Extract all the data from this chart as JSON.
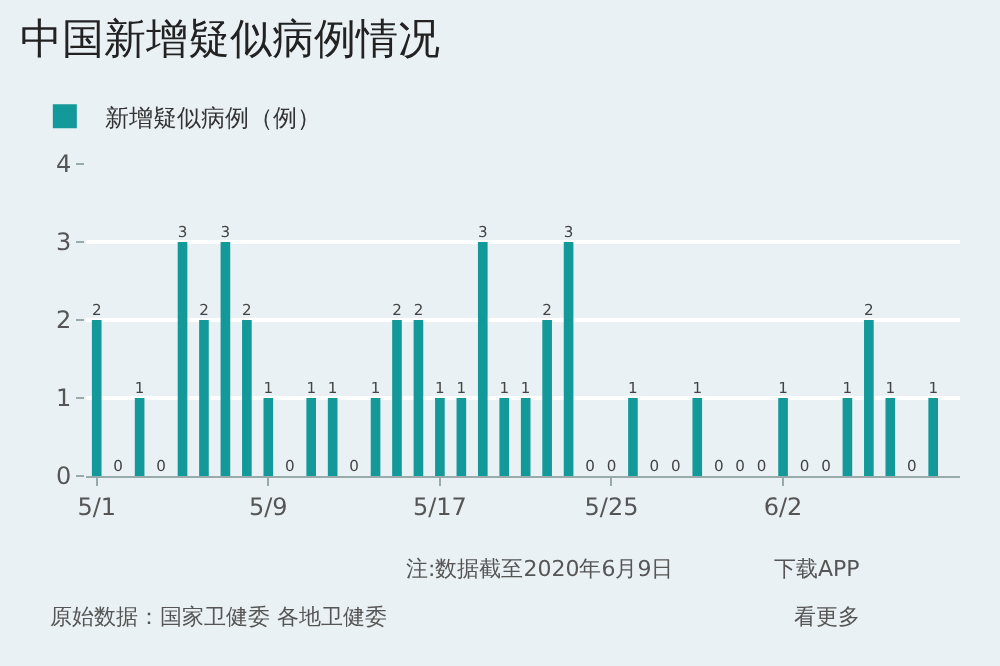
{
  "chart_data": {
    "type": "bar",
    "title": "中国新增疑似病例情况",
    "x": [
      "2020-05-01",
      "2020-05-02",
      "2020-05-03",
      "2020-05-04",
      "2020-05-05",
      "2020-05-06",
      "2020-05-07",
      "2020-05-08",
      "2020-05-09",
      "2020-05-10",
      "2020-05-11",
      "2020-05-12",
      "2020-05-13",
      "2020-05-14",
      "2020-05-15",
      "2020-05-16",
      "2020-05-17",
      "2020-05-18",
      "2020-05-19",
      "2020-05-20",
      "2020-05-21",
      "2020-05-22",
      "2020-05-23",
      "2020-05-24",
      "2020-05-25",
      "2020-05-26",
      "2020-05-27",
      "2020-05-28",
      "2020-05-29",
      "2020-05-30",
      "2020-05-31",
      "2020-06-01",
      "2020-06-02",
      "2020-06-03",
      "2020-06-04",
      "2020-06-05",
      "2020-06-06",
      "2020-06-07",
      "2020-06-08",
      "2020-06-09"
    ],
    "series": [
      {
        "name": "新增疑似病例（例）",
        "color": "#14999a",
        "values": [
          2,
          0,
          1,
          0,
          3,
          2,
          3,
          2,
          1,
          0,
          1,
          1,
          0,
          1,
          2,
          2,
          1,
          1,
          3,
          1,
          1,
          2,
          3,
          0,
          0,
          1,
          0,
          0,
          1,
          0,
          0,
          0,
          1,
          0,
          0,
          1,
          2,
          1,
          0,
          1
        ]
      }
    ],
    "xlim": [
      "2020-04-30T12:00",
      "2020-06-10T06:00"
    ],
    "xticks": [
      {
        "value": "2020-05-01",
        "label": "5/1"
      },
      {
        "value": "2020-05-09",
        "label": "5/9"
      },
      {
        "value": "2020-05-17",
        "label": "5/17"
      },
      {
        "value": "2020-05-25",
        "label": "5/25"
      },
      {
        "value": "2020-06-02",
        "label": "6/2"
      }
    ],
    "ylim": [
      0,
      4
    ],
    "yticks": [
      0,
      1,
      2,
      3,
      4
    ],
    "grid": "y",
    "legend": "top left",
    "data_labels": true,
    "annotations": [
      "注:数据截至2020年6月9日",
      "下载APP",
      "原始数据：国家卫健委 各地卫健委",
      "看更多"
    ]
  }
}
